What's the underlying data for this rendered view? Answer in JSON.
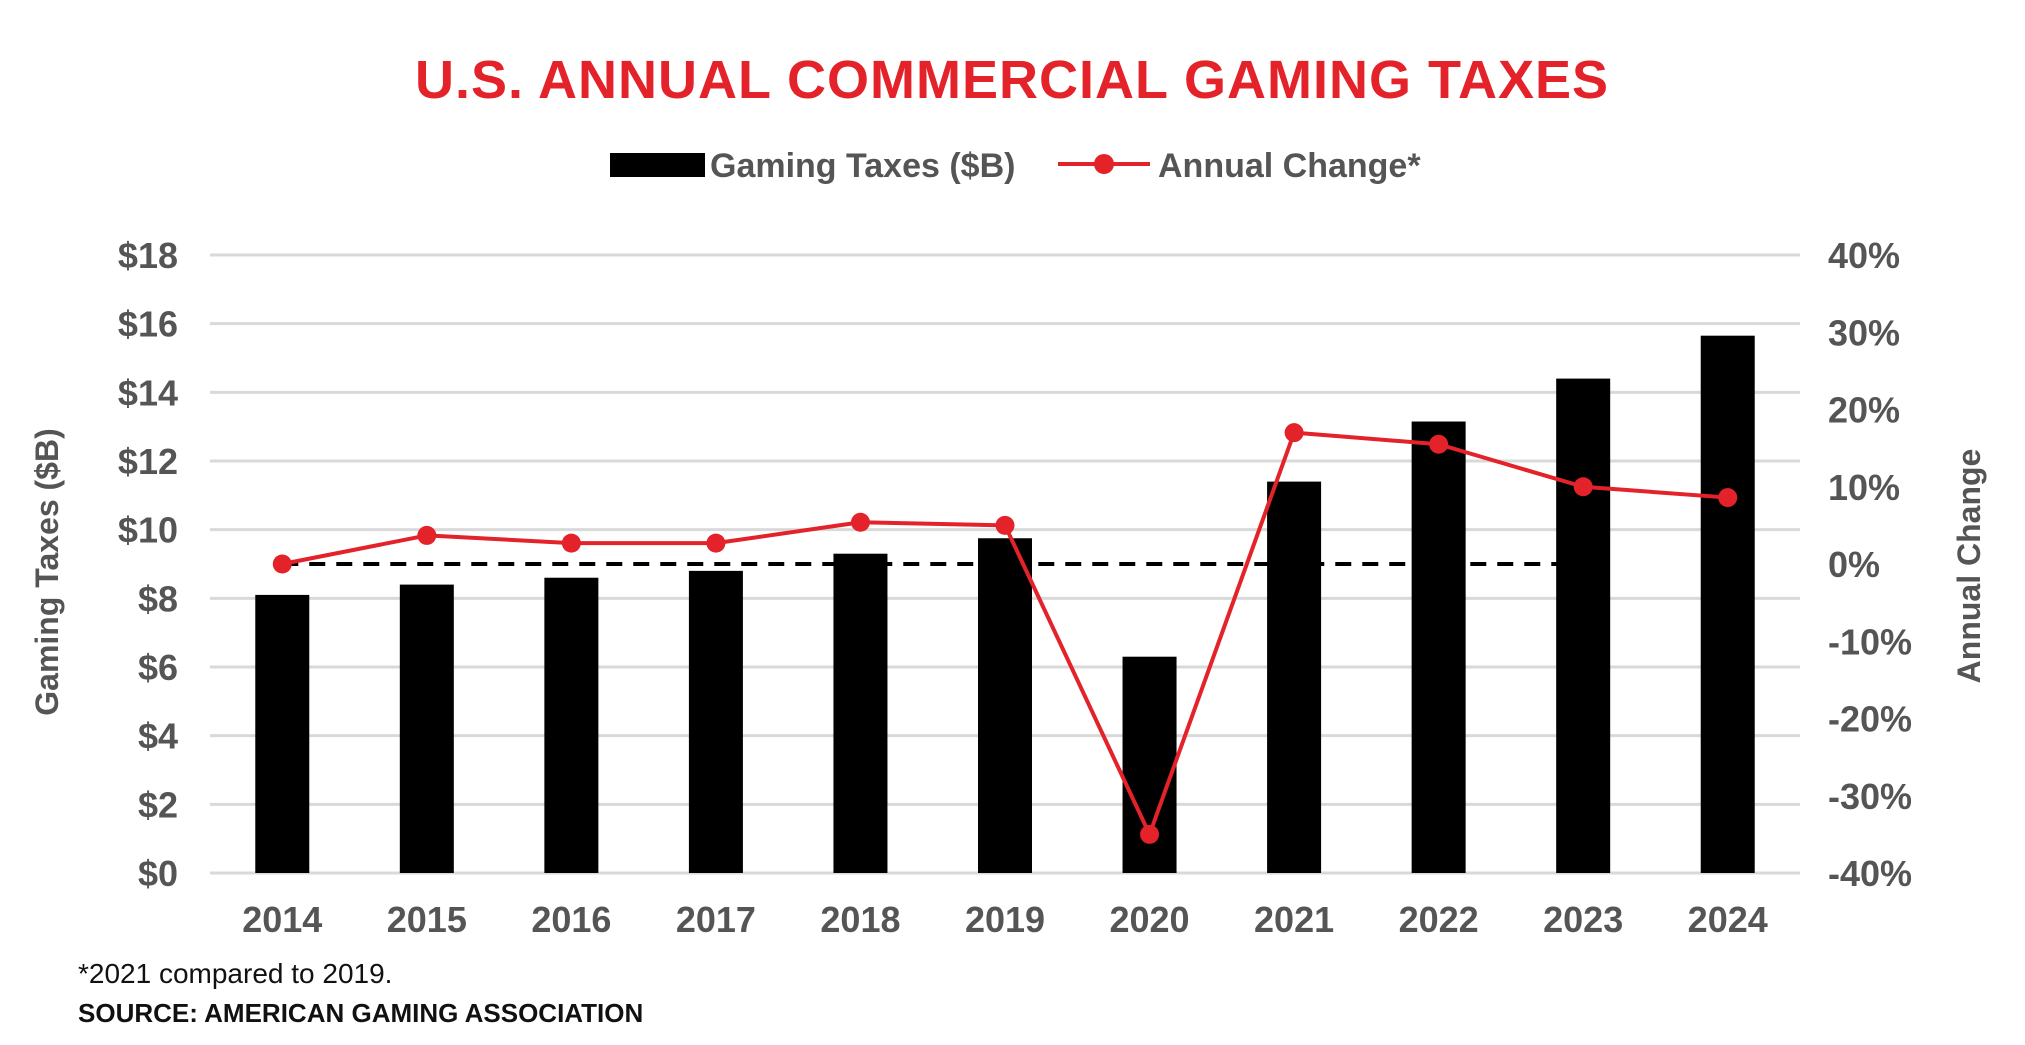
{
  "colors": {
    "title": "#e32229",
    "bar": "#000000",
    "line": "#e32229",
    "grid": "#d9d9d9",
    "text": "#555555",
    "baseline": "#000000"
  },
  "footnote": "*2021 compared to 2019.",
  "source": "SOURCE: AMERICAN GAMING ASSOCIATION",
  "chart_data": {
    "type": "bar",
    "title": "U.S. ANNUAL COMMERCIAL GAMING TAXES",
    "categories": [
      "2014",
      "2015",
      "2016",
      "2017",
      "2018",
      "2019",
      "2020",
      "2021",
      "2022",
      "2023",
      "2024"
    ],
    "series": [
      {
        "name": "Gaming Taxes ($B)",
        "type": "bar",
        "axis": "left",
        "values": [
          8.1,
          8.4,
          8.6,
          8.8,
          9.3,
          9.75,
          6.3,
          11.4,
          13.15,
          14.4,
          15.65
        ]
      },
      {
        "name": "Annual Change*",
        "type": "line",
        "axis": "right",
        "values": [
          0.0,
          3.7,
          2.7,
          2.7,
          5.4,
          5.0,
          -35.0,
          17.0,
          15.5,
          10.0,
          8.6
        ]
      }
    ],
    "reference_line": {
      "axis": "right",
      "value": 0,
      "style": "dashed",
      "from": "2014",
      "to": "2023"
    },
    "ylabel": "Gaming Taxes ($B)",
    "y2label": "Annual Change",
    "ylim": [
      0,
      18
    ],
    "y2lim": [
      -40,
      40
    ],
    "yticks": [
      "$0",
      "$2",
      "$4",
      "$6",
      "$8",
      "$10",
      "$12",
      "$14",
      "$16",
      "$18"
    ],
    "y2ticks": [
      "-40%",
      "-30%",
      "-20%",
      "-10%",
      "0%",
      "10%",
      "20%",
      "30%",
      "40%"
    ],
    "grid": true,
    "legend": "top-center"
  }
}
